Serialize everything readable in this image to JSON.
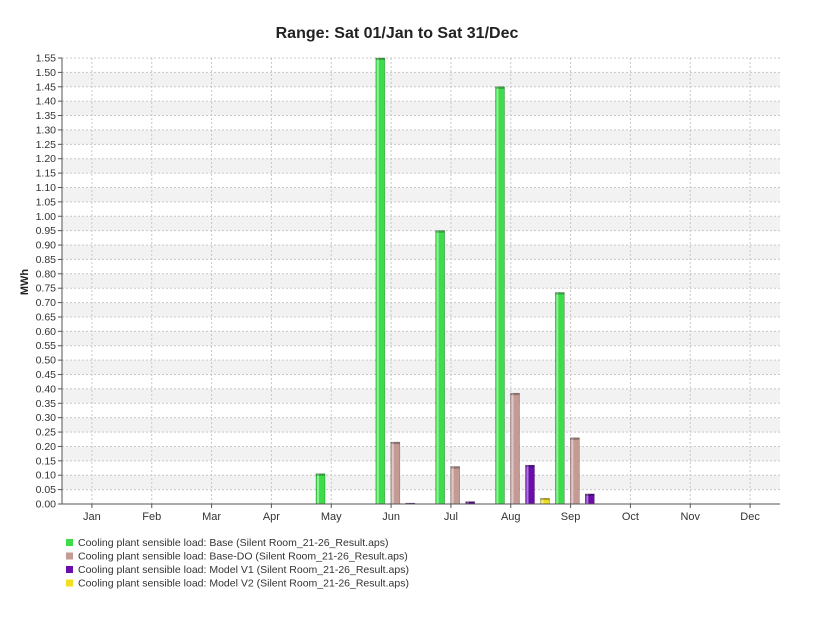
{
  "chart_data": {
    "type": "bar",
    "title": "Range: Sat 01/Jan to Sat 31/Dec",
    "xlabel": "",
    "ylabel": "MWh",
    "ylim": [
      0,
      1.55
    ],
    "ytick_step": 0.05,
    "grid": true,
    "legend_position": "bottom-left",
    "categories": [
      "Jan",
      "Feb",
      "Mar",
      "Apr",
      "May",
      "Jun",
      "Jul",
      "Aug",
      "Sep",
      "Oct",
      "Nov",
      "Dec"
    ],
    "series": [
      {
        "name": "Cooling plant sensible load: Base (Silent Room_21-26_Result.aps)",
        "color": "#3ddc4a",
        "values": [
          0,
          0,
          0,
          0,
          0.105,
          1.55,
          0.95,
          1.45,
          0.735,
          0,
          0,
          0
        ]
      },
      {
        "name": "Cooling plant sensible load: Base-DO (Silent Room_21-26_Result.aps)",
        "color": "#c49a95",
        "values": [
          0,
          0,
          0,
          0,
          0,
          0.215,
          0.13,
          0.385,
          0.23,
          0,
          0,
          0
        ]
      },
      {
        "name": "Cooling plant sensible load: Model V1 (Silent Room_21-26_Result.aps)",
        "color": "#6a0dad",
        "values": [
          0,
          0,
          0,
          0,
          0,
          0.003,
          0.008,
          0.135,
          0.035,
          0,
          0,
          0
        ]
      },
      {
        "name": "Cooling plant sensible load: Model V2 (Silent Room_21-26_Result.aps)",
        "color": "#f0e020",
        "values": [
          0,
          0,
          0,
          0,
          0,
          0,
          0,
          0.02,
          0,
          0,
          0,
          0
        ]
      }
    ]
  }
}
